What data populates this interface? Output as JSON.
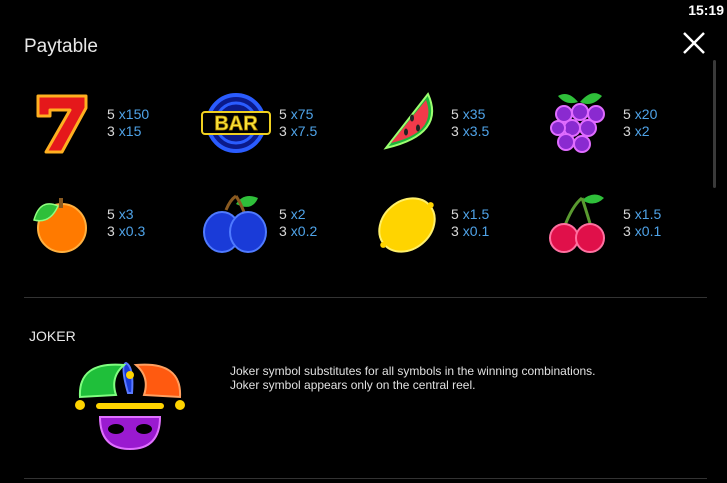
{
  "status_bar": {
    "time": "15:19"
  },
  "header": {
    "title": "Paytable"
  },
  "symbols": [
    {
      "icon": "seven-icon",
      "pays": [
        {
          "count": "5",
          "mult": "x150"
        },
        {
          "count": "3",
          "mult": "x15"
        }
      ]
    },
    {
      "icon": "bar-icon",
      "label": "BAR",
      "pays": [
        {
          "count": "5",
          "mult": "x75"
        },
        {
          "count": "3",
          "mult": "x7.5"
        }
      ]
    },
    {
      "icon": "watermelon-icon",
      "pays": [
        {
          "count": "5",
          "mult": "x35"
        },
        {
          "count": "3",
          "mult": "x3.5"
        }
      ]
    },
    {
      "icon": "grapes-icon",
      "pays": [
        {
          "count": "5",
          "mult": "x20"
        },
        {
          "count": "3",
          "mult": "x2"
        }
      ]
    },
    {
      "icon": "orange-icon",
      "pays": [
        {
          "count": "5",
          "mult": "x3"
        },
        {
          "count": "3",
          "mult": "x0.3"
        }
      ]
    },
    {
      "icon": "plum-icon",
      "pays": [
        {
          "count": "5",
          "mult": "x2"
        },
        {
          "count": "3",
          "mult": "x0.2"
        }
      ]
    },
    {
      "icon": "lemon-icon",
      "pays": [
        {
          "count": "5",
          "mult": "x1.5"
        },
        {
          "count": "3",
          "mult": "x0.1"
        }
      ]
    },
    {
      "icon": "cherry-icon",
      "pays": [
        {
          "count": "5",
          "mult": "x1.5"
        },
        {
          "count": "3",
          "mult": "x0.1"
        }
      ]
    }
  ],
  "joker": {
    "title": "JOKER",
    "icon": "joker-icon",
    "description_line1": "Joker symbol substitutes for all symbols in the winning combinations.",
    "description_line2": "Joker symbol appears only on the central reel."
  },
  "colors": {
    "background": "#000000",
    "multiplier": "#4fa3e8"
  }
}
